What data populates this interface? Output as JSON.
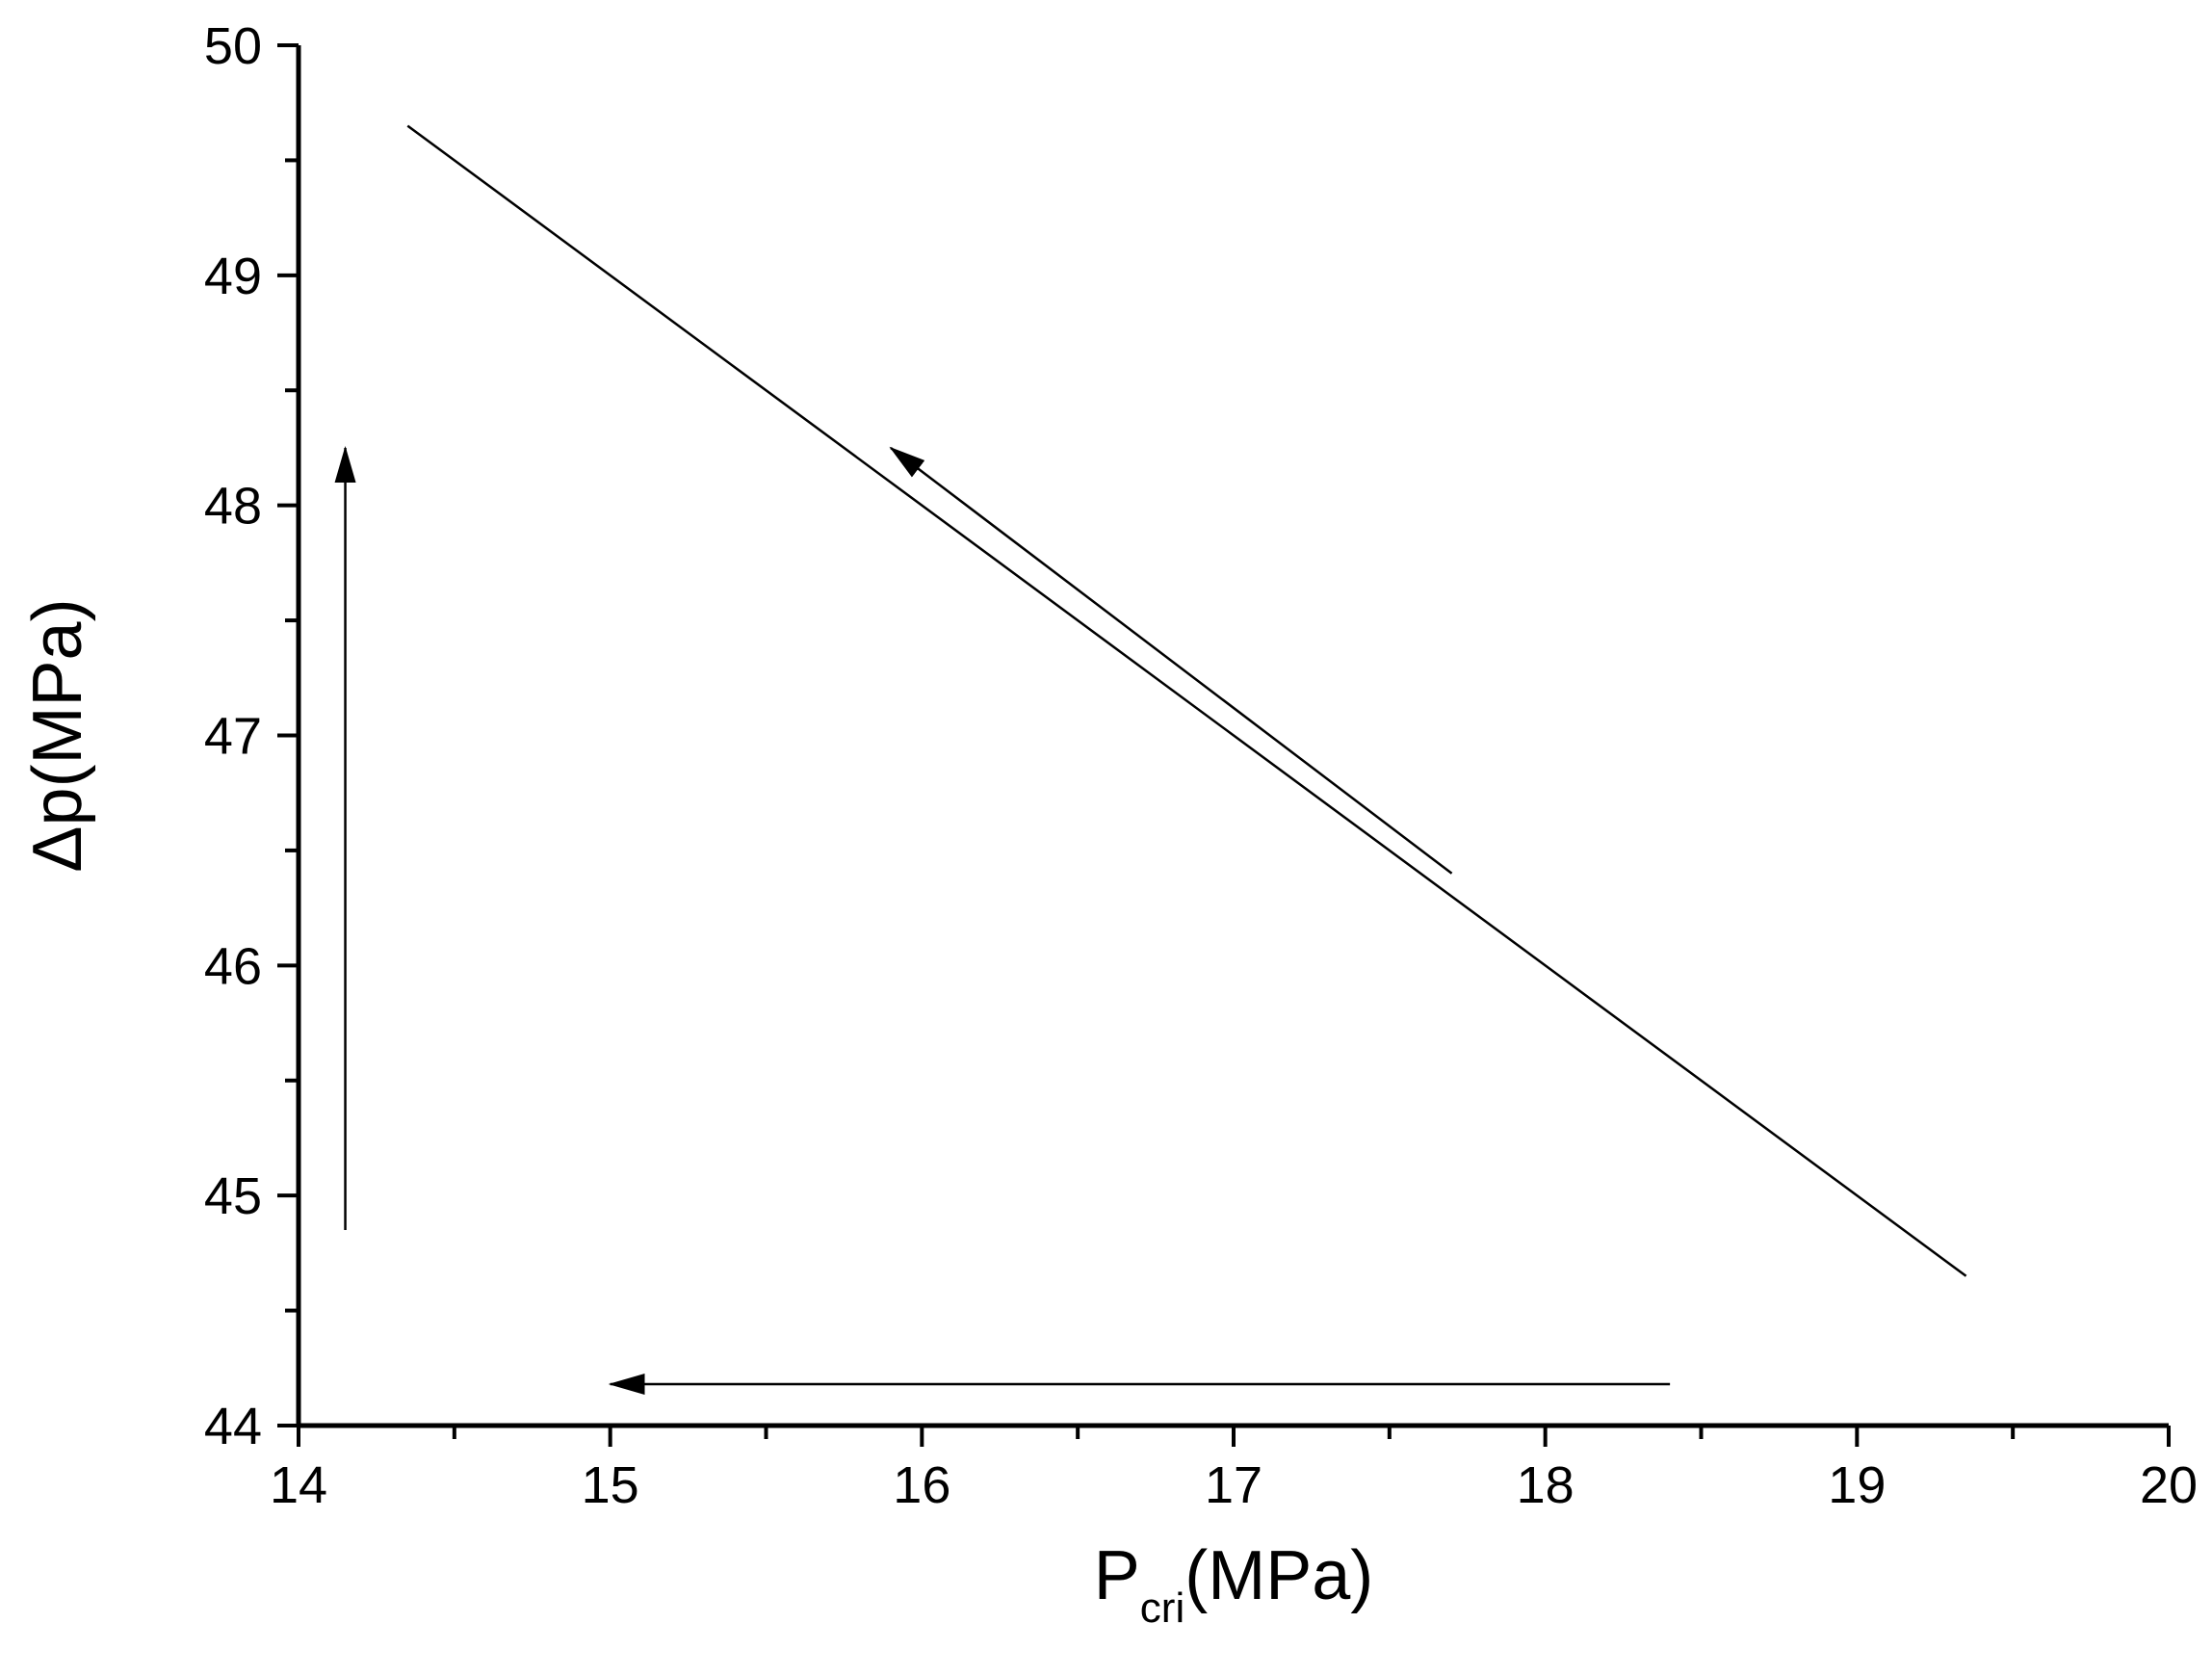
{
  "chart_data": {
    "type": "line",
    "title": "",
    "xlabel": {
      "main": "P",
      "sub": "cri",
      "unit": "(MPa)"
    },
    "ylabel": "Δp(MPa)",
    "xlim": [
      14,
      20
    ],
    "ylim": [
      44,
      50
    ],
    "x_ticks": [
      "14",
      "15",
      "16",
      "17",
      "18",
      "19",
      "20"
    ],
    "y_ticks": [
      "44",
      "45",
      "46",
      "47",
      "48",
      "49",
      "50"
    ],
    "x_minor_step": 0.5,
    "y_minor_step": 0.5,
    "grid": false,
    "series": [
      {
        "x": [
          14.35,
          19.35
        ],
        "y": [
          49.65,
          44.65
        ]
      }
    ],
    "annotations": [
      {
        "type": "arrow",
        "from": [
          14.15,
          44.85
        ],
        "to": [
          14.15,
          48.25
        ]
      },
      {
        "type": "arrow",
        "from": [
          17.7,
          46.4
        ],
        "to": [
          15.9,
          48.25
        ]
      },
      {
        "type": "arrow",
        "from": [
          18.4,
          44.18
        ],
        "to": [
          15.0,
          44.18
        ]
      }
    ]
  },
  "colors": {
    "line": "#000000",
    "axis": "#000000",
    "background": "#ffffff"
  }
}
